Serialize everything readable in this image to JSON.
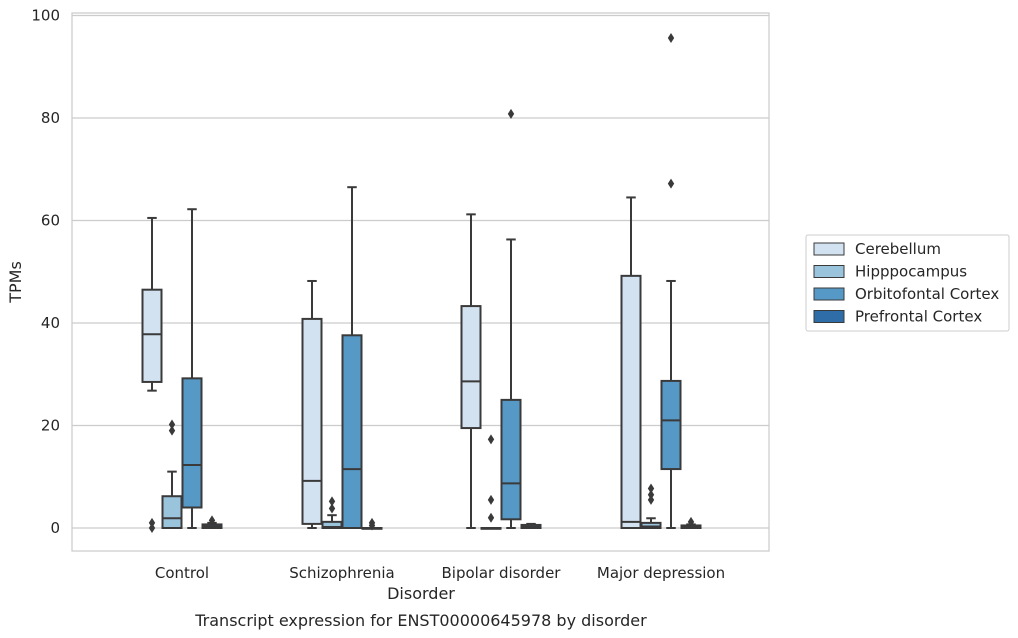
{
  "chart_data": {
    "type": "box",
    "caption": "Transcript expression for ENST00000645978 by disorder",
    "xlabel": "Disorder",
    "ylabel": "TPMs",
    "ylim": [
      -4.5,
      100.5
    ],
    "yticks": [
      0,
      20,
      40,
      60,
      80,
      100
    ],
    "grid": "horizontal",
    "legend_position": "right",
    "categories": [
      "Control",
      "Schizophrenia",
      "Bipolar disorder",
      "Major depression"
    ],
    "series": [
      {
        "name": "Cerebellum",
        "color": "#d3e2f0",
        "boxes": [
          {
            "whisker_low": 26.8,
            "q1": 28.5,
            "median": 37.8,
            "q3": 46.5,
            "whisker_high": 60.5,
            "outliers": [
              1.0,
              0.0
            ]
          },
          {
            "whisker_low": 0.0,
            "q1": 0.8,
            "median": 9.2,
            "q3": 40.8,
            "whisker_high": 48.2,
            "outliers": []
          },
          {
            "whisker_low": 0.0,
            "q1": 19.5,
            "median": 28.6,
            "q3": 43.3,
            "whisker_high": 61.2,
            "outliers": []
          },
          {
            "whisker_low": 0.0,
            "q1": 0.0,
            "median": 1.2,
            "q3": 49.2,
            "whisker_high": 64.5,
            "outliers": []
          }
        ]
      },
      {
        "name": "Hipppocampus",
        "color": "#9ac3dc",
        "boxes": [
          {
            "whisker_low": 0.0,
            "q1": 0.0,
            "median": 1.9,
            "q3": 6.2,
            "whisker_high": 11.0,
            "outliers": [
              19.0,
              20.2
            ]
          },
          {
            "whisker_low": 0.0,
            "q1": 0.0,
            "median": 0.2,
            "q3": 1.2,
            "whisker_high": 2.5,
            "outliers": [
              3.8,
              5.2
            ]
          },
          {
            "whisker_low": 0.0,
            "q1": 0.0,
            "median": 0.0,
            "q3": 0.0,
            "whisker_high": 0.0,
            "outliers": [
              17.3,
              5.5,
              2.0
            ]
          },
          {
            "whisker_low": 0.0,
            "q1": 0.0,
            "median": 0.3,
            "q3": 1.0,
            "whisker_high": 1.9,
            "outliers": [
              5.5,
              6.5,
              7.7
            ]
          }
        ]
      },
      {
        "name": "Orbitofontal Cortex",
        "color": "#5799c6",
        "boxes": [
          {
            "whisker_low": 0.0,
            "q1": 4.0,
            "median": 12.3,
            "q3": 29.2,
            "whisker_high": 62.2,
            "outliers": []
          },
          {
            "whisker_low": 0.0,
            "q1": 0.0,
            "median": 11.5,
            "q3": 37.6,
            "whisker_high": 66.5,
            "outliers": []
          },
          {
            "whisker_low": 0.0,
            "q1": 1.7,
            "median": 8.7,
            "q3": 25.0,
            "whisker_high": 56.3,
            "outliers": [
              80.8
            ]
          },
          {
            "whisker_low": 0.0,
            "q1": 11.5,
            "median": 21.0,
            "q3": 28.7,
            "whisker_high": 48.2,
            "outliers": [
              67.2,
              95.6
            ]
          }
        ]
      },
      {
        "name": "Prefrontal Cortex",
        "color": "#2e6da8",
        "boxes": [
          {
            "whisker_low": 0.0,
            "q1": 0.0,
            "median": 0.3,
            "q3": 0.7,
            "whisker_high": 1.0,
            "outliers": [
              1.5
            ]
          },
          {
            "whisker_low": 0.0,
            "q1": 0.0,
            "median": 0.0,
            "q3": 0.0,
            "whisker_high": 0.0,
            "outliers": [
              0.5,
              1.0
            ]
          },
          {
            "whisker_low": 0.0,
            "q1": 0.0,
            "median": 0.2,
            "q3": 0.6,
            "whisker_high": 0.8,
            "outliers": []
          },
          {
            "whisker_low": 0.0,
            "q1": 0.0,
            "median": 0.2,
            "q3": 0.5,
            "whisker_high": 0.7,
            "outliers": [
              1.2
            ]
          }
        ]
      }
    ]
  }
}
